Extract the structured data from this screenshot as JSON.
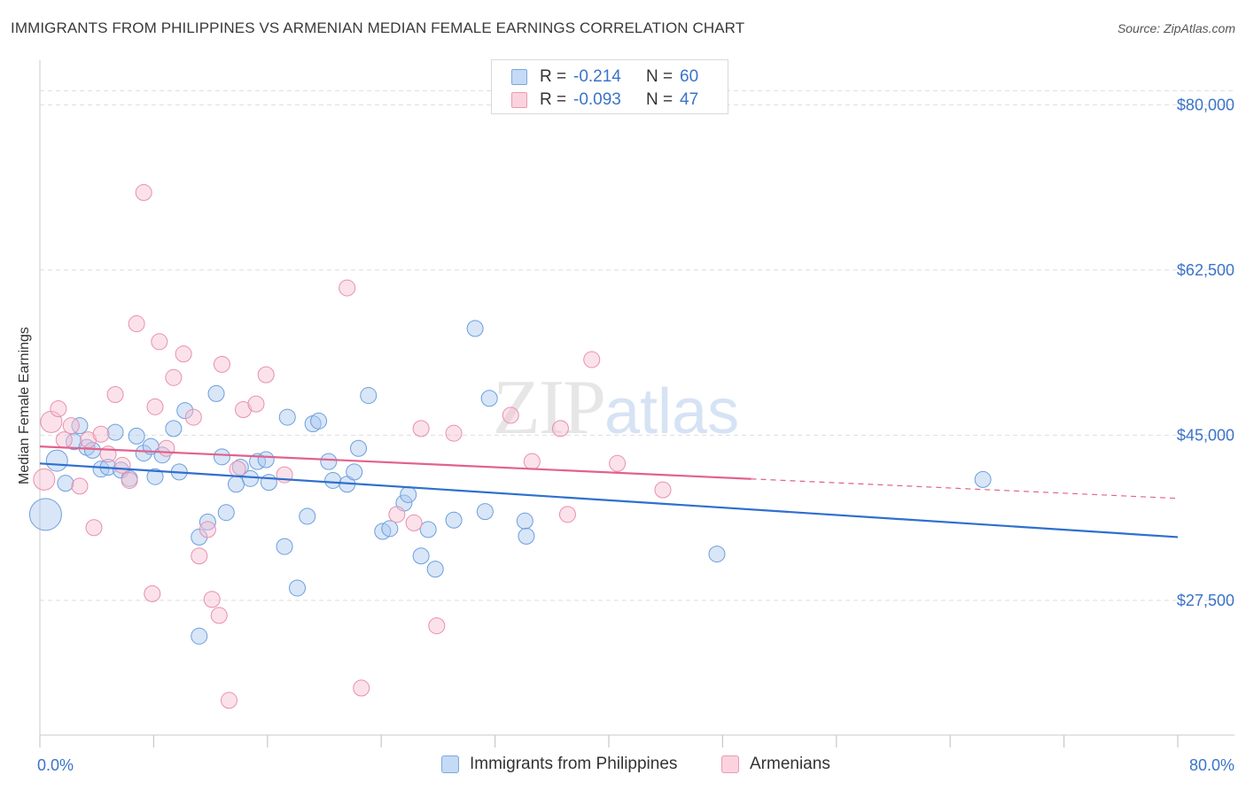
{
  "header": {
    "title": "IMMIGRANTS FROM PHILIPPINES VS ARMENIAN MEDIAN FEMALE EARNINGS CORRELATION CHART",
    "source": "Source: ZipAtlas.com"
  },
  "watermark": {
    "zip": "ZIP",
    "atlas": "atlas"
  },
  "legend_top": {
    "rows": [
      {
        "r_label": "R =",
        "r_value": "-0.214",
        "n_label": "N =",
        "n_value": "60",
        "color": "#a9c8f0",
        "stroke": "#6d9fdc"
      },
      {
        "r_label": "R =",
        "r_value": "-0.093",
        "n_label": "N =",
        "n_value": "47",
        "color": "#f6bfd0",
        "stroke": "#e98fae"
      }
    ]
  },
  "legend_bottom": {
    "items": [
      {
        "label": "Immigrants from Philippines",
        "color": "#c5daf5",
        "stroke": "#7aa7e0"
      },
      {
        "label": "Armenians",
        "color": "#fbd3df",
        "stroke": "#e99ab4"
      }
    ]
  },
  "chart_data": {
    "type": "scatter",
    "title": "IMMIGRANTS FROM PHILIPPINES VS ARMENIAN MEDIAN FEMALE EARNINGS CORRELATION CHART",
    "ylabel": "Median Female Earnings",
    "xlabel": "",
    "x_tick_labels": [
      "0.0%",
      "80.0%"
    ],
    "y_tick_labels": [
      "$27,500",
      "$45,000",
      "$62,500",
      "$80,000"
    ],
    "y_ticks": [
      27500,
      45000,
      62500,
      80000
    ],
    "xlim": [
      0,
      80
    ],
    "ylim": [
      12000,
      82000
    ],
    "grid": true,
    "legend_position": "bottom",
    "series": [
      {
        "name": "Immigrants from Philippines",
        "color": "#a9c8f0",
        "stroke": "#6d9fdc",
        "line_color": "#2f6fcf",
        "trend": {
          "x0": 0,
          "y0": 42000,
          "x1": 80,
          "y1": 34200,
          "dash_from": null
        },
        "points": [
          [
            0.4,
            36600,
            3
          ],
          [
            1.2,
            42300,
            1.4
          ],
          [
            1.8,
            39900,
            1
          ],
          [
            2.4,
            44300,
            1
          ],
          [
            2.8,
            46000,
            1
          ],
          [
            3.3,
            43700,
            1
          ],
          [
            3.7,
            43400,
            1
          ],
          [
            4.3,
            41400,
            1
          ],
          [
            4.8,
            41600,
            1
          ],
          [
            5.3,
            45300,
            1
          ],
          [
            5.7,
            41300,
            1
          ],
          [
            6.3,
            40400,
            1
          ],
          [
            6.8,
            44900,
            1
          ],
          [
            7.3,
            43100,
            1
          ],
          [
            7.8,
            43800,
            1
          ],
          [
            8.1,
            40600,
            1
          ],
          [
            8.6,
            42900,
            1
          ],
          [
            9.4,
            45700,
            1
          ],
          [
            9.8,
            41100,
            1
          ],
          [
            10.2,
            47600,
            1
          ],
          [
            11.2,
            34200,
            1
          ],
          [
            11.2,
            23700,
            1
          ],
          [
            11.8,
            35800,
            1
          ],
          [
            12.4,
            49400,
            1
          ],
          [
            12.8,
            42700,
            1
          ],
          [
            13.1,
            36800,
            1
          ],
          [
            13.8,
            39800,
            1
          ],
          [
            14.1,
            41600,
            1
          ],
          [
            14.8,
            40400,
            1
          ],
          [
            15.3,
            42200,
            1
          ],
          [
            15.9,
            42400,
            1
          ],
          [
            16.1,
            40000,
            1
          ],
          [
            17.2,
            33200,
            1
          ],
          [
            17.4,
            46900,
            1
          ],
          [
            18.1,
            28800,
            1
          ],
          [
            18.8,
            36400,
            1
          ],
          [
            19.2,
            46200,
            1
          ],
          [
            19.6,
            46500,
            1
          ],
          [
            20.3,
            42200,
            1
          ],
          [
            20.6,
            40200,
            1
          ],
          [
            21.6,
            39800,
            1
          ],
          [
            22.1,
            41100,
            1
          ],
          [
            22.4,
            43600,
            1
          ],
          [
            23.1,
            49200,
            1
          ],
          [
            24.1,
            34800,
            1
          ],
          [
            24.6,
            35100,
            1
          ],
          [
            25.6,
            37800,
            1
          ],
          [
            25.9,
            38700,
            1
          ],
          [
            26.8,
            32200,
            1
          ],
          [
            27.3,
            35000,
            1
          ],
          [
            27.8,
            30800,
            1
          ],
          [
            29.1,
            36000,
            1
          ],
          [
            30.6,
            56300,
            1
          ],
          [
            31.3,
            36900,
            1
          ],
          [
            31.6,
            48900,
            1
          ],
          [
            34.1,
            35900,
            1
          ],
          [
            34.2,
            34300,
            1
          ],
          [
            47.6,
            32400,
            1
          ],
          [
            66.3,
            40300,
            1
          ],
          [
            0.6,
            38900,
            0
          ]
        ]
      },
      {
        "name": "Armenians",
        "color": "#f6bfd0",
        "stroke": "#e98fae",
        "line_color": "#e2628c",
        "trend": {
          "x0": 0,
          "y0": 43800,
          "x1": 80,
          "y1": 38300,
          "dash_from": 50
        },
        "points": [
          [
            0.3,
            40300,
            1.8
          ],
          [
            0.8,
            46400,
            1.2
          ],
          [
            1.3,
            47800,
            1
          ],
          [
            1.7,
            44500,
            1
          ],
          [
            2.2,
            46000,
            1
          ],
          [
            2.8,
            39600,
            1
          ],
          [
            3.4,
            44500,
            1
          ],
          [
            3.8,
            35200,
            1
          ],
          [
            4.3,
            45100,
            1
          ],
          [
            4.8,
            43000,
            1
          ],
          [
            5.3,
            49300,
            1
          ],
          [
            5.8,
            41800,
            1
          ],
          [
            6.3,
            40200,
            1
          ],
          [
            6.8,
            56800,
            1
          ],
          [
            7.3,
            70700,
            1
          ],
          [
            7.9,
            28200,
            1
          ],
          [
            8.1,
            48000,
            1
          ],
          [
            8.4,
            54900,
            1
          ],
          [
            8.9,
            43600,
            1
          ],
          [
            9.4,
            51100,
            1
          ],
          [
            10.1,
            53600,
            1
          ],
          [
            10.8,
            46900,
            1
          ],
          [
            11.2,
            32200,
            1
          ],
          [
            11.8,
            35000,
            1
          ],
          [
            12.1,
            27600,
            1
          ],
          [
            12.6,
            25900,
            1
          ],
          [
            12.8,
            52500,
            1
          ],
          [
            13.3,
            16900,
            1
          ],
          [
            13.9,
            41400,
            1
          ],
          [
            14.3,
            47700,
            1
          ],
          [
            15.2,
            48300,
            1
          ],
          [
            15.9,
            51400,
            1
          ],
          [
            17.2,
            40800,
            1
          ],
          [
            21.6,
            60600,
            1
          ],
          [
            22.6,
            18200,
            1
          ],
          [
            25.1,
            36600,
            1
          ],
          [
            26.3,
            35700,
            1
          ],
          [
            26.8,
            45700,
            1
          ],
          [
            27.9,
            24800,
            1
          ],
          [
            29.1,
            45200,
            1
          ],
          [
            33.1,
            47100,
            1
          ],
          [
            34.6,
            42200,
            1
          ],
          [
            36.6,
            45700,
            1
          ],
          [
            37.1,
            36600,
            1
          ],
          [
            38.8,
            53000,
            1
          ],
          [
            40.6,
            42000,
            1
          ],
          [
            43.8,
            39200,
            1
          ]
        ]
      }
    ]
  }
}
